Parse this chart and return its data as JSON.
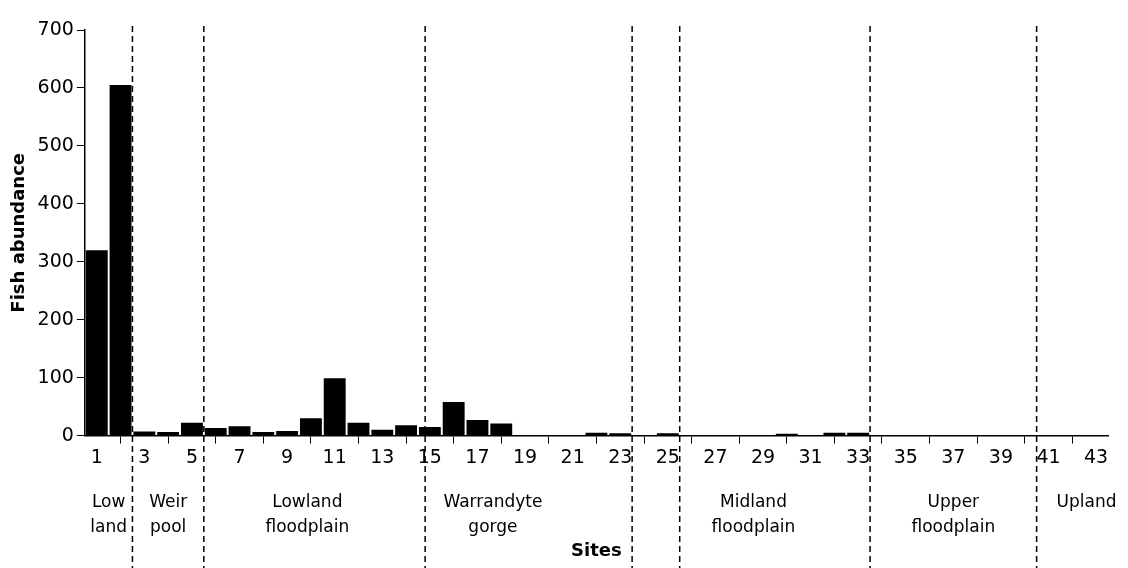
{
  "chart_data": {
    "type": "bar",
    "xlabel": "Sites",
    "ylabel": "Fish abundance",
    "x": [
      1,
      2,
      3,
      4,
      5,
      6,
      7,
      8,
      9,
      10,
      11,
      12,
      13,
      14,
      15,
      16,
      17,
      18,
      19,
      20,
      21,
      22,
      23,
      24,
      25,
      26,
      27,
      28,
      29,
      30,
      31,
      32,
      33,
      34,
      35,
      36,
      37,
      38,
      39,
      40,
      41,
      42,
      43
    ],
    "values": [
      320,
      605,
      7,
      6,
      22,
      13,
      16,
      6,
      8,
      30,
      99,
      22,
      10,
      18,
      15,
      58,
      27,
      21,
      0,
      0,
      0,
      5,
      4,
      0,
      4,
      0,
      0,
      0,
      0,
      3,
      0,
      5,
      5,
      0,
      0,
      0,
      0,
      0,
      0,
      0,
      0,
      0,
      0
    ],
    "color": "#000000",
    "xlim": [
      0.5,
      43.5
    ],
    "xticks": [
      1,
      3,
      5,
      7,
      9,
      11,
      13,
      15,
      17,
      19,
      21,
      23,
      25,
      27,
      29,
      31,
      33,
      35,
      37,
      39,
      41,
      43
    ],
    "ylim": [
      0,
      700
    ],
    "yticks": [
      0,
      100,
      200,
      300,
      400,
      500,
      600,
      700
    ],
    "grid": false,
    "legend": false,
    "ref_lines": [
      {
        "axis": "x",
        "value": 2.5,
        "line_style": "dashed"
      },
      {
        "axis": "x",
        "value": 5.5,
        "line_style": "dashed"
      },
      {
        "axis": "x",
        "value": 14.8,
        "line_style": "dashed"
      },
      {
        "axis": "x",
        "value": 23.5,
        "line_style": "dashed"
      },
      {
        "axis": "x",
        "value": 25.5,
        "line_style": "dashed"
      },
      {
        "axis": "x",
        "value": 33.5,
        "line_style": "dashed"
      },
      {
        "axis": "x",
        "value": 40.5,
        "line_style": "dashed"
      }
    ],
    "annotations": [
      "Low\nland",
      "Weir\npool",
      "Lowland\nfloodplain",
      "Warrandyte\ngorge",
      "Midland\nfloodplain",
      "Upper\nfloodplain",
      "Upland"
    ]
  }
}
